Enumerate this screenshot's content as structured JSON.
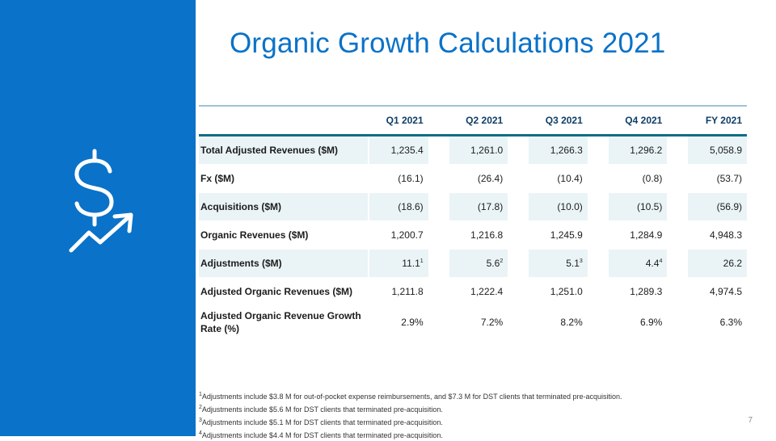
{
  "title": "Organic Growth Calculations 2021",
  "table": {
    "headers": [
      "",
      "Q1 2021",
      "Q2 2021",
      "Q3 2021",
      "Q4 2021",
      "FY 2021"
    ],
    "rows": [
      {
        "label": "Total Adjusted Revenues ($M)",
        "values": [
          "1,235.4",
          "1,261.0",
          "1,266.3",
          "1,296.2",
          "5,058.9"
        ],
        "sup": [
          "",
          "",
          "",
          "",
          ""
        ]
      },
      {
        "label": "Fx ($M)",
        "values": [
          "(16.1)",
          "(26.4)",
          "(10.4)",
          "(0.8)",
          "(53.7)"
        ],
        "sup": [
          "",
          "",
          "",
          "",
          ""
        ]
      },
      {
        "label": "Acquisitions ($M)",
        "values": [
          "(18.6)",
          "(17.8)",
          "(10.0)",
          "(10.5)",
          "(56.9)"
        ],
        "sup": [
          "",
          "",
          "",
          "",
          ""
        ]
      },
      {
        "label": "Organic Revenues ($M)",
        "values": [
          "1,200.7",
          "1,216.8",
          "1,245.9",
          "1,284.9",
          "4,948.3"
        ],
        "sup": [
          "",
          "",
          "",
          "",
          ""
        ]
      },
      {
        "label": "Adjustments ($M)",
        "values": [
          "11.1",
          "5.6",
          "5.1",
          "4.4",
          "26.2"
        ],
        "sup": [
          "1",
          "2",
          "3",
          "4",
          ""
        ]
      },
      {
        "label": "Adjusted Organic Revenues ($M)",
        "values": [
          "1,211.8",
          "1,222.4",
          "1,251.0",
          "1,289.3",
          "4,974.5"
        ],
        "sup": [
          "",
          "",
          "",
          "",
          ""
        ]
      },
      {
        "label": "Adjusted Organic Revenue Growth Rate (%)",
        "values": [
          "2.9%",
          "7.2%",
          "8.2%",
          "6.9%",
          "6.3%"
        ],
        "sup": [
          "",
          "",
          "",
          "",
          ""
        ]
      }
    ]
  },
  "footnotes": [
    {
      "mark": "1",
      "text": "Adjustments include $3.8 M for out-of-pocket expense reimbursements, and $7.3 M for DST clients that terminated pre-acquisition."
    },
    {
      "mark": "2",
      "text": "Adjustments include $5.6 M for DST clients that terminated pre-acquisition."
    },
    {
      "mark": "3",
      "text": "Adjustments include $5.1 M for DST clients that terminated pre-acquisition."
    },
    {
      "mark": "4",
      "text": "Adjustments include $4.4 M for DST clients that terminated pre-acquisition."
    }
  ],
  "page_number": "7",
  "icon": "dollar-growth-icon",
  "colors": {
    "brand_blue": "#0a72c8",
    "table_rule": "#0e6e86",
    "row_shade": "#eaf4f6"
  }
}
